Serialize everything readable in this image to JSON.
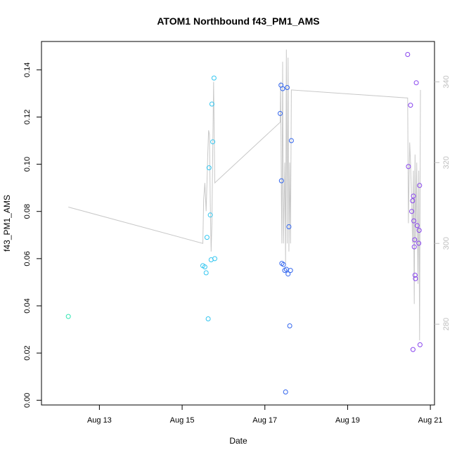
{
  "chart_data": {
    "type": "scatter",
    "title": "ATOM1 Northbound f43_PM1_AMS",
    "xlabel": "Date",
    "ylabel": "f43_PM1_AMS",
    "x_range_days": [
      11.6,
      21.1
    ],
    "ylim": [
      -0.002,
      0.152
    ],
    "y_ticks": [
      0.0,
      0.02,
      0.04,
      0.06,
      0.08,
      0.1,
      0.12,
      0.14
    ],
    "y_tick_labels": [
      "0.00",
      "0.02",
      "0.04",
      "0.06",
      "0.08",
      "0.10",
      "0.12",
      "0.14"
    ],
    "x_ticks": [
      13,
      15,
      17,
      19,
      21
    ],
    "x_tick_labels": [
      "Aug 13",
      "Aug 15",
      "Aug 17",
      "Aug 19",
      "Aug 21"
    ],
    "right_axis": {
      "ylim": [
        260,
        350
      ],
      "ticks": [
        280,
        300,
        320,
        340
      ],
      "tick_labels": [
        "280",
        "300",
        "320",
        "340"
      ],
      "color": "#bfbfbf"
    },
    "points": [
      {
        "day": 12.25,
        "value": 0.0355,
        "color": "#33e6b3"
      },
      {
        "day": 15.5,
        "value": 0.057,
        "color": "#33c6f0"
      },
      {
        "day": 15.55,
        "value": 0.0565,
        "color": "#33c6f0"
      },
      {
        "day": 15.58,
        "value": 0.054,
        "color": "#33c6f0"
      },
      {
        "day": 15.6,
        "value": 0.069,
        "color": "#33c6f0"
      },
      {
        "day": 15.63,
        "value": 0.0345,
        "color": "#33c6f0"
      },
      {
        "day": 15.65,
        "value": 0.0985,
        "color": "#33c6f0"
      },
      {
        "day": 15.68,
        "value": 0.0785,
        "color": "#33c6f0"
      },
      {
        "day": 15.7,
        "value": 0.0595,
        "color": "#33c6f0"
      },
      {
        "day": 15.72,
        "value": 0.1255,
        "color": "#33c6f0"
      },
      {
        "day": 15.74,
        "value": 0.1095,
        "color": "#33c6f0"
      },
      {
        "day": 15.77,
        "value": 0.1365,
        "color": "#33c6f0"
      },
      {
        "day": 15.79,
        "value": 0.06,
        "color": "#33c6f0"
      },
      {
        "day": 17.37,
        "value": 0.1215,
        "color": "#3366ee"
      },
      {
        "day": 17.39,
        "value": 0.1335,
        "color": "#3366ee"
      },
      {
        "day": 17.4,
        "value": 0.093,
        "color": "#3366ee"
      },
      {
        "day": 17.41,
        "value": 0.058,
        "color": "#3366ee"
      },
      {
        "day": 17.43,
        "value": 0.132,
        "color": "#3366ee"
      },
      {
        "day": 17.45,
        "value": 0.0575,
        "color": "#3366ee"
      },
      {
        "day": 17.48,
        "value": 0.055,
        "color": "#3366ee"
      },
      {
        "day": 17.5,
        "value": 0.0035,
        "color": "#3366ee"
      },
      {
        "day": 17.52,
        "value": 0.0555,
        "color": "#3366ee"
      },
      {
        "day": 17.54,
        "value": 0.1325,
        "color": "#3366ee"
      },
      {
        "day": 17.56,
        "value": 0.0535,
        "color": "#3366ee"
      },
      {
        "day": 17.58,
        "value": 0.0735,
        "color": "#3366ee"
      },
      {
        "day": 17.6,
        "value": 0.0315,
        "color": "#3366ee"
      },
      {
        "day": 17.62,
        "value": 0.055,
        "color": "#3366ee"
      },
      {
        "day": 17.64,
        "value": 0.11,
        "color": "#3366ee"
      },
      {
        "day": 20.45,
        "value": 0.1465,
        "color": "#8844ee"
      },
      {
        "day": 20.47,
        "value": 0.099,
        "color": "#8844ee"
      },
      {
        "day": 20.52,
        "value": 0.125,
        "color": "#8844ee"
      },
      {
        "day": 20.55,
        "value": 0.08,
        "color": "#8844ee"
      },
      {
        "day": 20.57,
        "value": 0.0845,
        "color": "#8844ee"
      },
      {
        "day": 20.58,
        "value": 0.0215,
        "color": "#8844ee"
      },
      {
        "day": 20.59,
        "value": 0.0865,
        "color": "#8844ee"
      },
      {
        "day": 20.6,
        "value": 0.076,
        "color": "#8844ee"
      },
      {
        "day": 20.61,
        "value": 0.065,
        "color": "#8844ee"
      },
      {
        "day": 20.62,
        "value": 0.068,
        "color": "#8844ee"
      },
      {
        "day": 20.63,
        "value": 0.053,
        "color": "#8844ee"
      },
      {
        "day": 20.64,
        "value": 0.0515,
        "color": "#8844ee"
      },
      {
        "day": 20.66,
        "value": 0.1345,
        "color": "#8844ee"
      },
      {
        "day": 20.68,
        "value": 0.074,
        "color": "#8844ee"
      },
      {
        "day": 20.72,
        "value": 0.0665,
        "color": "#8844ee"
      },
      {
        "day": 20.73,
        "value": 0.072,
        "color": "#8844ee"
      },
      {
        "day": 20.74,
        "value": 0.091,
        "color": "#8844ee"
      },
      {
        "day": 20.75,
        "value": 0.0235,
        "color": "#8844ee"
      }
    ],
    "secondary_line": {
      "name": "secondary series (right axis)",
      "color": "#c8c8c8",
      "points": [
        [
          12.25,
          309
        ],
        [
          15.5,
          300
        ],
        [
          15.52,
          311
        ],
        [
          15.55,
          315
        ],
        [
          15.58,
          308
        ],
        [
          15.6,
          315
        ],
        [
          15.62,
          322
        ],
        [
          15.64,
          328
        ],
        [
          15.66,
          327
        ],
        [
          15.68,
          310
        ],
        [
          15.7,
          298
        ],
        [
          15.72,
          305
        ],
        [
          15.74,
          323
        ],
        [
          15.76,
          340
        ],
        [
          15.79,
          315
        ],
        [
          17.37,
          330
        ],
        [
          17.38,
          340
        ],
        [
          17.4,
          310
        ],
        [
          17.41,
          300
        ],
        [
          17.43,
          345
        ],
        [
          17.45,
          300
        ],
        [
          17.48,
          320
        ],
        [
          17.5,
          295
        ],
        [
          17.52,
          348
        ],
        [
          17.54,
          300
        ],
        [
          17.56,
          346
        ],
        [
          17.58,
          298
        ],
        [
          17.6,
          320
        ],
        [
          17.62,
          300
        ],
        [
          17.64,
          338
        ],
        [
          20.45,
          336
        ],
        [
          20.47,
          305
        ],
        [
          20.5,
          325
        ],
        [
          20.52,
          320
        ],
        [
          20.55,
          310
        ],
        [
          20.57,
          300
        ],
        [
          20.59,
          318
        ],
        [
          20.61,
          285
        ],
        [
          20.63,
          322
        ],
        [
          20.65,
          300
        ],
        [
          20.67,
          320
        ],
        [
          20.7,
          290
        ],
        [
          20.72,
          318
        ],
        [
          20.74,
          276
        ],
        [
          20.76,
          338
        ]
      ]
    }
  }
}
